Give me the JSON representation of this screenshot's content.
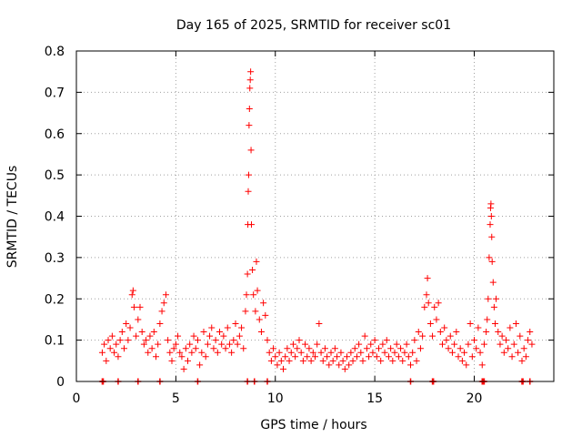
{
  "chart_data": {
    "type": "scatter",
    "title": "Day 165 of 2025, SRMTID for receiver sc01",
    "xlabel": "GPS time / hours",
    "ylabel": "SRMTID / TECUs",
    "xlim": [
      0,
      24
    ],
    "ylim": [
      0,
      0.8
    ],
    "xticks": [
      0,
      5,
      10,
      15,
      20
    ],
    "yticks": [
      0,
      0.1,
      0.2,
      0.3,
      0.4,
      0.5,
      0.6,
      0.7,
      0.8
    ],
    "xtick_labels": [
      "0",
      "5",
      "10",
      "15",
      "20"
    ],
    "ytick_labels": [
      "0",
      "0.1",
      "0.2",
      "0.3",
      "0.4",
      "0.5",
      "0.6",
      "0.7",
      "0.8"
    ],
    "grid": true,
    "marker": "+",
    "color": "#ff0000",
    "series": [
      {
        "name": "SRMTID",
        "points": [
          [
            1.3,
            0.07
          ],
          [
            1.4,
            0.09
          ],
          [
            1.5,
            0.05
          ],
          [
            1.6,
            0.1
          ],
          [
            1.7,
            0.08
          ],
          [
            1.8,
            0.11
          ],
          [
            1.9,
            0.07
          ],
          [
            2.0,
            0.09
          ],
          [
            2.1,
            0.06
          ],
          [
            2.2,
            0.1
          ],
          [
            2.3,
            0.12
          ],
          [
            2.4,
            0.08
          ],
          [
            2.5,
            0.14
          ],
          [
            2.6,
            0.1
          ],
          [
            2.7,
            0.13
          ],
          [
            2.8,
            0.21
          ],
          [
            2.85,
            0.22
          ],
          [
            2.9,
            0.18
          ],
          [
            3.0,
            0.11
          ],
          [
            3.1,
            0.15
          ],
          [
            3.2,
            0.18
          ],
          [
            3.3,
            0.12
          ],
          [
            3.4,
            0.09
          ],
          [
            3.5,
            0.1
          ],
          [
            3.6,
            0.07
          ],
          [
            3.7,
            0.11
          ],
          [
            3.8,
            0.08
          ],
          [
            3.9,
            0.12
          ],
          [
            4.0,
            0.06
          ],
          [
            4.1,
            0.09
          ],
          [
            4.2,
            0.14
          ],
          [
            4.3,
            0.17
          ],
          [
            4.4,
            0.19
          ],
          [
            4.5,
            0.21
          ],
          [
            4.6,
            0.1
          ],
          [
            4.7,
            0.07
          ],
          [
            4.8,
            0.05
          ],
          [
            4.9,
            0.08
          ],
          [
            5.0,
            0.09
          ],
          [
            5.1,
            0.11
          ],
          [
            5.2,
            0.07
          ],
          [
            5.3,
            0.06
          ],
          [
            5.4,
            0.03
          ],
          [
            5.5,
            0.08
          ],
          [
            5.6,
            0.05
          ],
          [
            5.7,
            0.09
          ],
          [
            5.8,
            0.07
          ],
          [
            5.9,
            0.11
          ],
          [
            6.0,
            0.08
          ],
          [
            6.1,
            0.1
          ],
          [
            6.2,
            0.04
          ],
          [
            6.3,
            0.07
          ],
          [
            6.4,
            0.12
          ],
          [
            6.5,
            0.06
          ],
          [
            6.6,
            0.09
          ],
          [
            6.7,
            0.11
          ],
          [
            6.8,
            0.13
          ],
          [
            6.9,
            0.08
          ],
          [
            7.0,
            0.1
          ],
          [
            7.1,
            0.07
          ],
          [
            7.2,
            0.12
          ],
          [
            7.3,
            0.09
          ],
          [
            7.4,
            0.11
          ],
          [
            7.5,
            0.08
          ],
          [
            7.6,
            0.13
          ],
          [
            7.7,
            0.09
          ],
          [
            7.8,
            0.07
          ],
          [
            7.9,
            0.1
          ],
          [
            8.0,
            0.14
          ],
          [
            8.1,
            0.09
          ],
          [
            8.2,
            0.11
          ],
          [
            8.3,
            0.13
          ],
          [
            8.4,
            0.08
          ],
          [
            8.5,
            0.17
          ],
          [
            8.55,
            0.21
          ],
          [
            8.6,
            0.26
          ],
          [
            8.62,
            0.38
          ],
          [
            8.64,
            0.46
          ],
          [
            8.66,
            0.5
          ],
          [
            8.68,
            0.62
          ],
          [
            8.7,
            0.66
          ],
          [
            8.72,
            0.71
          ],
          [
            8.74,
            0.73
          ],
          [
            8.76,
            0.75
          ],
          [
            8.78,
            0.56
          ],
          [
            8.8,
            0.38
          ],
          [
            8.85,
            0.27
          ],
          [
            8.9,
            0.21
          ],
          [
            9.0,
            0.17
          ],
          [
            9.05,
            0.29
          ],
          [
            9.1,
            0.22
          ],
          [
            9.2,
            0.15
          ],
          [
            9.3,
            0.12
          ],
          [
            9.4,
            0.19
          ],
          [
            9.5,
            0.16
          ],
          [
            9.6,
            0.1
          ],
          [
            9.7,
            0.07
          ],
          [
            9.8,
            0.05
          ],
          [
            9.9,
            0.08
          ],
          [
            10.0,
            0.06
          ],
          [
            10.1,
            0.04
          ],
          [
            10.2,
            0.07
          ],
          [
            10.3,
            0.05
          ],
          [
            10.4,
            0.03
          ],
          [
            10.5,
            0.06
          ],
          [
            10.6,
            0.08
          ],
          [
            10.7,
            0.05
          ],
          [
            10.8,
            0.07
          ],
          [
            10.9,
            0.09
          ],
          [
            11.0,
            0.06
          ],
          [
            11.1,
            0.08
          ],
          [
            11.2,
            0.1
          ],
          [
            11.3,
            0.07
          ],
          [
            11.4,
            0.05
          ],
          [
            11.5,
            0.09
          ],
          [
            11.6,
            0.06
          ],
          [
            11.7,
            0.08
          ],
          [
            11.8,
            0.05
          ],
          [
            11.9,
            0.07
          ],
          [
            12.0,
            0.06
          ],
          [
            12.1,
            0.09
          ],
          [
            12.2,
            0.14
          ],
          [
            12.3,
            0.07
          ],
          [
            12.4,
            0.05
          ],
          [
            12.5,
            0.08
          ],
          [
            12.6,
            0.06
          ],
          [
            12.7,
            0.04
          ],
          [
            12.8,
            0.07
          ],
          [
            12.9,
            0.05
          ],
          [
            13.0,
            0.08
          ],
          [
            13.1,
            0.06
          ],
          [
            13.2,
            0.04
          ],
          [
            13.3,
            0.07
          ],
          [
            13.4,
            0.05
          ],
          [
            13.5,
            0.03
          ],
          [
            13.6,
            0.06
          ],
          [
            13.7,
            0.04
          ],
          [
            13.8,
            0.07
          ],
          [
            13.9,
            0.05
          ],
          [
            14.0,
            0.08
          ],
          [
            14.1,
            0.06
          ],
          [
            14.2,
            0.09
          ],
          [
            14.3,
            0.07
          ],
          [
            14.4,
            0.05
          ],
          [
            14.5,
            0.11
          ],
          [
            14.6,
            0.08
          ],
          [
            14.7,
            0.06
          ],
          [
            14.8,
            0.09
          ],
          [
            14.9,
            0.07
          ],
          [
            15.0,
            0.1
          ],
          [
            15.1,
            0.06
          ],
          [
            15.2,
            0.08
          ],
          [
            15.3,
            0.05
          ],
          [
            15.4,
            0.09
          ],
          [
            15.5,
            0.07
          ],
          [
            15.6,
            0.1
          ],
          [
            15.7,
            0.06
          ],
          [
            15.8,
            0.08
          ],
          [
            15.9,
            0.05
          ],
          [
            16.0,
            0.07
          ],
          [
            16.1,
            0.09
          ],
          [
            16.2,
            0.06
          ],
          [
            16.3,
            0.08
          ],
          [
            16.4,
            0.05
          ],
          [
            16.5,
            0.07
          ],
          [
            16.6,
            0.09
          ],
          [
            16.7,
            0.06
          ],
          [
            16.8,
            0.04
          ],
          [
            16.9,
            0.07
          ],
          [
            17.0,
            0.1
          ],
          [
            17.1,
            0.05
          ],
          [
            17.2,
            0.12
          ],
          [
            17.3,
            0.08
          ],
          [
            17.4,
            0.11
          ],
          [
            17.5,
            0.18
          ],
          [
            17.6,
            0.21
          ],
          [
            17.65,
            0.25
          ],
          [
            17.7,
            0.19
          ],
          [
            17.8,
            0.14
          ],
          [
            17.9,
            0.11
          ],
          [
            18.0,
            0.18
          ],
          [
            18.1,
            0.15
          ],
          [
            18.2,
            0.19
          ],
          [
            18.3,
            0.12
          ],
          [
            18.4,
            0.09
          ],
          [
            18.5,
            0.13
          ],
          [
            18.6,
            0.1
          ],
          [
            18.7,
            0.08
          ],
          [
            18.8,
            0.11
          ],
          [
            18.9,
            0.07
          ],
          [
            19.0,
            0.09
          ],
          [
            19.1,
            0.12
          ],
          [
            19.2,
            0.06
          ],
          [
            19.3,
            0.08
          ],
          [
            19.4,
            0.05
          ],
          [
            19.5,
            0.07
          ],
          [
            19.6,
            0.04
          ],
          [
            19.7,
            0.09
          ],
          [
            19.8,
            0.14
          ],
          [
            19.9,
            0.06
          ],
          [
            20.0,
            0.1
          ],
          [
            20.1,
            0.08
          ],
          [
            20.2,
            0.13
          ],
          [
            20.3,
            0.07
          ],
          [
            20.4,
            0.04
          ],
          [
            20.5,
            0.09
          ],
          [
            20.6,
            0.12
          ],
          [
            20.65,
            0.15
          ],
          [
            20.7,
            0.2
          ],
          [
            20.75,
            0.3
          ],
          [
            20.8,
            0.38
          ],
          [
            20.82,
            0.42
          ],
          [
            20.84,
            0.43
          ],
          [
            20.86,
            0.4
          ],
          [
            20.88,
            0.35
          ],
          [
            20.9,
            0.29
          ],
          [
            20.95,
            0.24
          ],
          [
            21.0,
            0.18
          ],
          [
            21.05,
            0.14
          ],
          [
            21.1,
            0.2
          ],
          [
            21.2,
            0.12
          ],
          [
            21.3,
            0.09
          ],
          [
            21.4,
            0.11
          ],
          [
            21.5,
            0.07
          ],
          [
            21.6,
            0.1
          ],
          [
            21.7,
            0.08
          ],
          [
            21.8,
            0.13
          ],
          [
            21.9,
            0.06
          ],
          [
            22.0,
            0.09
          ],
          [
            22.1,
            0.14
          ],
          [
            22.2,
            0.07
          ],
          [
            22.3,
            0.11
          ],
          [
            22.4,
            0.05
          ],
          [
            22.5,
            0.08
          ],
          [
            22.6,
            0.06
          ],
          [
            22.7,
            0.1
          ],
          [
            22.8,
            0.12
          ],
          [
            22.9,
            0.09
          ]
        ]
      }
    ]
  }
}
